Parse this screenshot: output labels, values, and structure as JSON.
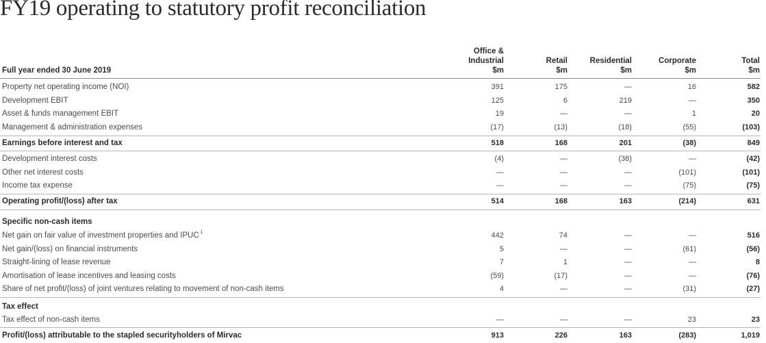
{
  "title": "FY19 operating to statutory profit reconciliation",
  "header": {
    "row_label": "Full year ended 30 June 2019",
    "columns": [
      {
        "line1": "Office &",
        "line2": "Industrial",
        "unit": "$m"
      },
      {
        "line1": "",
        "line2": "Retail",
        "unit": "$m"
      },
      {
        "line1": "",
        "line2": "Residential",
        "unit": "$m"
      },
      {
        "line1": "",
        "line2": "Corporate",
        "unit": "$m"
      },
      {
        "line1": "",
        "line2": "Total",
        "unit": "$m"
      }
    ]
  },
  "rows": {
    "r1": {
      "label": "Property net operating income (NOI)",
      "v": [
        "391",
        "175",
        "—",
        "16",
        "582"
      ]
    },
    "r2": {
      "label": "Development EBIT",
      "v": [
        "125",
        "6",
        "219",
        "—",
        "350"
      ]
    },
    "r3": {
      "label": "Asset & funds management EBIT",
      "v": [
        "19",
        "—",
        "—",
        "1",
        "20"
      ]
    },
    "r4": {
      "label": "Management & administration expenses",
      "v": [
        "(17)",
        "(13)",
        "(18)",
        "(55)",
        "(103)"
      ]
    },
    "r5": {
      "label": "Earnings before interest and tax",
      "v": [
        "518",
        "168",
        "201",
        "(38)",
        "849"
      ]
    },
    "r6": {
      "label": "Development interest costs",
      "v": [
        "(4)",
        "—",
        "(38)",
        "—",
        "(42)"
      ]
    },
    "r7": {
      "label": "Other net interest costs",
      "v": [
        "—",
        "—",
        "—",
        "(101)",
        "(101)"
      ]
    },
    "r8": {
      "label": "Income tax expense",
      "v": [
        "—",
        "—",
        "—",
        "(75)",
        "(75)"
      ]
    },
    "r9": {
      "label": "Operating profit/(loss) after tax",
      "v": [
        "514",
        "168",
        "163",
        "(214)",
        "631"
      ]
    },
    "s1": {
      "label": "Specific non-cash items"
    },
    "r10": {
      "label": "Net gain on fair value of investment properties and IPUC",
      "sup": "1",
      "v": [
        "442",
        "74",
        "—",
        "—",
        "516"
      ]
    },
    "r11": {
      "label": "Net gain/(loss) on financial instruments",
      "v": [
        "5",
        "—",
        "—",
        "(61)",
        "(56)"
      ]
    },
    "r12": {
      "label": "Straight-lining of lease revenue",
      "v": [
        "7",
        "1",
        "—",
        "—",
        "8"
      ]
    },
    "r13": {
      "label": "Amortisation of lease incentives and leasing costs",
      "v": [
        "(59)",
        "(17)",
        "—",
        "—",
        "(76)"
      ]
    },
    "r14": {
      "label": "Share of net profit/(loss) of joint ventures relating to movement of non-cash items",
      "v": [
        "4",
        "—",
        "—",
        "(31)",
        "(27)"
      ]
    },
    "s2": {
      "label": "Tax effect"
    },
    "r15": {
      "label": "Tax effect of non-cash items",
      "v": [
        "—",
        "—",
        "—",
        "23",
        "23"
      ]
    },
    "r16": {
      "label": "Profit/(loss) attributable to the stapled securityholders of Mirvac",
      "v": [
        "913",
        "226",
        "163",
        "(283)",
        "1,019"
      ]
    }
  }
}
